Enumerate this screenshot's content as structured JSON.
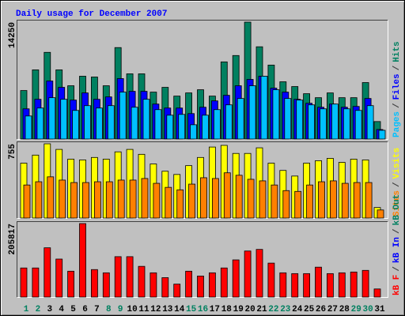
{
  "chart_data": {
    "type": "bar",
    "title": "Daily usage for December 2007",
    "categories": [
      "1",
      "2",
      "3",
      "4",
      "5",
      "6",
      "7",
      "8",
      "9",
      "10",
      "11",
      "12",
      "13",
      "14",
      "15",
      "16",
      "17",
      "18",
      "19",
      "20",
      "21",
      "22",
      "23",
      "24",
      "25",
      "26",
      "27",
      "28",
      "29",
      "30",
      "31"
    ],
    "category_colors": [
      "#008060",
      "#008060",
      "#000000",
      "#000000",
      "#000000",
      "#000000",
      "#000000",
      "#008060",
      "#008060",
      "#000000",
      "#000000",
      "#000000",
      "#000000",
      "#000000",
      "#008060",
      "#008060",
      "#000000",
      "#000000",
      "#000000",
      "#000000",
      "#000000",
      "#008060",
      "#008060",
      "#000000",
      "#000000",
      "#000000",
      "#000000",
      "#000000",
      "#008060",
      "#008060",
      "#000000"
    ],
    "legend_separator": "/",
    "panels": [
      {
        "ylim": [
          0,
          14250
        ],
        "series": [
          {
            "name": "Hits",
            "color": "#008060",
            "values": [
              5913,
              8434,
              10566,
              8434,
              6495,
              7658,
              7561,
              6495,
              11148,
              7949,
              7949,
              5719,
              6301,
              5235,
              5622,
              6010,
              5235,
              9403,
              10179,
              14250,
              11245,
              9015,
              6980,
              6398,
              5526,
              5041,
              5622,
              5041,
              5041,
              6883,
              2133
            ]
          },
          {
            "name": "Files",
            "color": "#0000ff",
            "values": [
              3684,
              4847,
              7077,
              6301,
              4750,
              5622,
              4847,
              5138,
              7367,
              5816,
              5816,
              4265,
              3781,
              3781,
              3102,
              3878,
              4653,
              5332,
              6495,
              7270,
              7658,
              6204,
              5719,
              4847,
              4362,
              3878,
              4265,
              3878,
              3975,
              4944,
              1163
            ]
          },
          {
            "name": "Pages",
            "color": "#00c0ff",
            "values": [
              2811,
              3781,
              5041,
              4847,
              3490,
              4071,
              3781,
              4071,
              5719,
              3878,
              4847,
              3587,
              2908,
              3005,
              1745,
              2908,
              3587,
              4168,
              4944,
              6495,
              7658,
              6010,
              4944,
              4750,
              4168,
              3684,
              4265,
              3684,
              3490,
              4071,
              1066
            ]
          }
        ]
      },
      {
        "ylim": [
          0,
          755
        ],
        "series": [
          {
            "name": "Visits",
            "color": "#ffff00",
            "values": [
              558,
              640,
              755,
              698,
              599,
              591,
              616,
              599,
              673,
              698,
              648,
              550,
              476,
              443,
              533,
              616,
              722,
              739,
              657,
              657,
              714,
              558,
              484,
              427,
              558,
              583,
              607,
              566,
              599,
              591,
              107
            ]
          },
          {
            "name": "Sites",
            "color": "#ff8000",
            "values": [
              336,
              369,
              419,
              386,
              361,
              361,
              369,
              369,
              386,
              386,
              402,
              353,
              312,
              287,
              345,
              410,
              402,
              460,
              435,
              394,
              378,
              336,
              279,
              271,
              336,
              369,
              378,
              353,
              361,
              361,
              82
            ]
          }
        ]
      },
      {
        "ylim": [
          0,
          205817
        ],
        "series": [
          {
            "name": "kB F",
            "color": "#ff0000",
            "values": [
              81431,
              81431,
              137982,
              106314,
              72383,
              205817,
              76907,
              67859,
              113097,
              113097,
              85955,
              67859,
              54287,
              36191,
              72383,
              58811,
              67859,
              81431,
              104049,
              128931,
              133455,
              95002,
              67859,
              65597,
              65597,
              83693,
              65597,
              67859,
              70121,
              74645,
              22619
            ]
          }
        ],
        "legend_only": [
          {
            "name": "kB In",
            "color": "#0000ff"
          },
          {
            "name": "kB Out",
            "color": "#008060"
          }
        ]
      }
    ]
  }
}
